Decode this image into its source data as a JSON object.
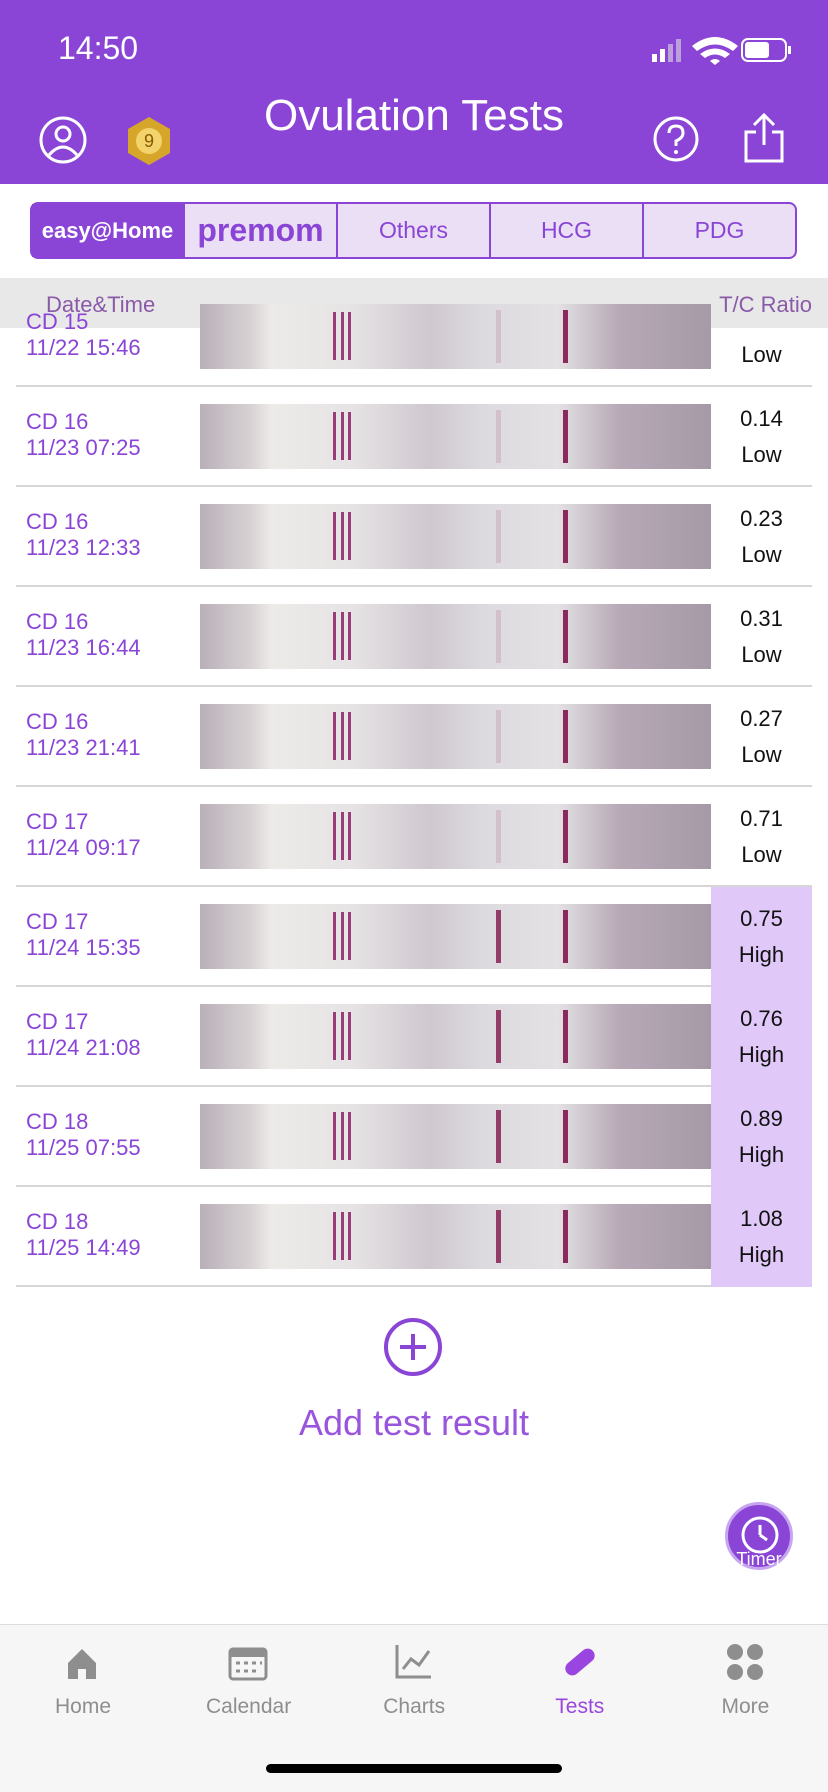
{
  "status": {
    "time": "14:50"
  },
  "header": {
    "title": "Ovulation Tests"
  },
  "tabs": [
    "easy@Home",
    "premom",
    "Others",
    "HCG",
    "PDG"
  ],
  "columns": {
    "left": "Date&Time",
    "right": "T/C Ratio"
  },
  "rows": [
    {
      "cd": "CD 15",
      "datetime": "11/22 15:46",
      "level": "Low"
    },
    {
      "cd": "CD 16",
      "datetime": "11/23 07:25",
      "ratio": "0.14",
      "level": "Low"
    },
    {
      "cd": "CD 16",
      "datetime": "11/23 12:33",
      "ratio": "0.23",
      "level": "Low"
    },
    {
      "cd": "CD 16",
      "datetime": "11/23 16:44",
      "ratio": "0.31",
      "level": "Low"
    },
    {
      "cd": "CD 16",
      "datetime": "11/23 21:41",
      "ratio": "0.27",
      "level": "Low"
    },
    {
      "cd": "CD 17",
      "datetime": "11/24 09:17",
      "ratio": "0.71",
      "level": "Low"
    },
    {
      "cd": "CD 17",
      "datetime": "11/24 15:35",
      "ratio": "0.75",
      "level": "High"
    },
    {
      "cd": "CD 17",
      "datetime": "11/24 21:08",
      "ratio": "0.76",
      "level": "High"
    },
    {
      "cd": "CD 18",
      "datetime": "11/25 07:55",
      "ratio": "0.89",
      "level": "High"
    },
    {
      "cd": "CD 18",
      "datetime": "11/25 14:49",
      "ratio": "1.08",
      "level": "High"
    }
  ],
  "add": "Add test result",
  "timer": "Timer",
  "nav": [
    "Home",
    "Calendar",
    "Charts",
    "Tests",
    "More"
  ]
}
